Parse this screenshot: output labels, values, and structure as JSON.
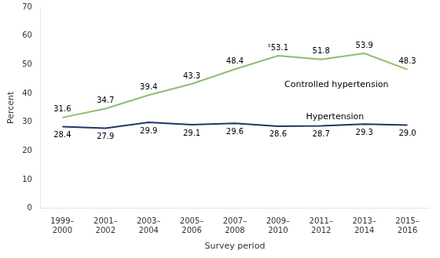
{
  "chart_data": {
    "type": "line",
    "xlabel": "Survey period",
    "ylabel": "Percent",
    "categories": [
      "1999–\n2000",
      "2001–\n2002",
      "2003–\n2004",
      "2005–\n2006",
      "2007–\n2008",
      "2009–\n2010",
      "2011–\n2012",
      "2013–\n2014",
      "2015–\n2016"
    ],
    "series": [
      {
        "color": "#8fbc6e",
        "values": [
          31.6,
          34.7,
          39.4,
          43.3,
          48.4,
          53.1,
          51.8,
          53.9,
          48.3
        ],
        "value_labels": [
          "31.6",
          "34.7",
          "39.4",
          "43.3",
          "48.4",
          "¹53.1",
          "51.8",
          "53.9",
          "48.3"
        ]
      },
      {
        "color": "#1f3864",
        "values": [
          28.4,
          27.9,
          29.9,
          29.1,
          29.6,
          28.6,
          28.7,
          29.3,
          29.0
        ],
        "value_labels": [
          "28.4",
          "27.9",
          "29.9",
          "29.1",
          "29.6",
          "28.6",
          "28.7",
          "29.3",
          "29.0"
        ]
      }
    ],
    "annotations": [
      {
        "text": "Controlled hypertension",
        "x": 5.15,
        "y": 44.5
      },
      {
        "text": "Hypertension",
        "x": 5.65,
        "y": 33.2
      }
    ],
    "ylim": [
      0,
      70
    ],
    "yticks": [
      0,
      10,
      20,
      30,
      40,
      50,
      60,
      70
    ],
    "data_labels": true,
    "grid": false
  }
}
